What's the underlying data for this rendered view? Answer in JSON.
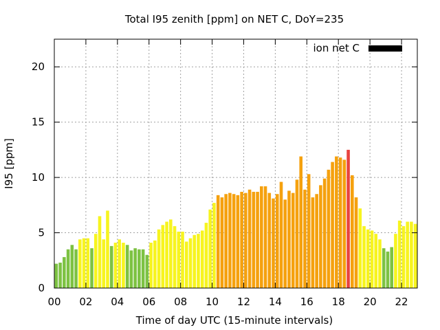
{
  "chart_data": {
    "type": "bar",
    "title": "Total I95 zenith [ppm] on NET C, DoY=235",
    "xlabel": "Time of day UTC (15-minute intervals)",
    "ylabel": "I95 [ppm]",
    "xlim": [
      0,
      23
    ],
    "ylim": [
      0,
      22.5
    ],
    "grid": true,
    "legend": {
      "position": "top-right",
      "label": "ion net C",
      "color": "#000000"
    },
    "x_ticks": [
      {
        "value": 0,
        "label": "00"
      },
      {
        "value": 2,
        "label": "02"
      },
      {
        "value": 4,
        "label": "04"
      },
      {
        "value": 6,
        "label": "06"
      },
      {
        "value": 8,
        "label": "08"
      },
      {
        "value": 10,
        "label": "10"
      },
      {
        "value": 12,
        "label": "12"
      },
      {
        "value": 14,
        "label": "14"
      },
      {
        "value": 16,
        "label": "16"
      },
      {
        "value": 18,
        "label": "18"
      },
      {
        "value": 20,
        "label": "20"
      },
      {
        "value": 22,
        "label": "22"
      }
    ],
    "y_ticks": [
      {
        "value": 0,
        "label": "0"
      },
      {
        "value": 5,
        "label": "5"
      },
      {
        "value": 10,
        "label": "10"
      },
      {
        "value": 15,
        "label": "15"
      },
      {
        "value": 20,
        "label": "20"
      }
    ],
    "bar_width": 0.2,
    "bars": [
      {
        "x": 0.125,
        "value": 2.2,
        "color": "#7dc242"
      },
      {
        "x": 0.375,
        "value": 2.3,
        "color": "#7dc242"
      },
      {
        "x": 0.625,
        "value": 2.8,
        "color": "#7dc242"
      },
      {
        "x": 0.875,
        "value": 3.5,
        "color": "#7dc242"
      },
      {
        "x": 1.125,
        "value": 3.9,
        "color": "#7dc242"
      },
      {
        "x": 1.375,
        "value": 3.5,
        "color": "#7dc242"
      },
      {
        "x": 1.625,
        "value": 4.4,
        "color": "#f7f41f"
      },
      {
        "x": 1.875,
        "value": 4.5,
        "color": "#f7f41f"
      },
      {
        "x": 2.125,
        "value": 4.5,
        "color": "#f7f41f"
      },
      {
        "x": 2.375,
        "value": 3.6,
        "color": "#7dc242"
      },
      {
        "x": 2.625,
        "value": 4.9,
        "color": "#f7f41f"
      },
      {
        "x": 2.875,
        "value": 6.5,
        "color": "#f7f41f"
      },
      {
        "x": 3.125,
        "value": 4.4,
        "color": "#f7f41f"
      },
      {
        "x": 3.375,
        "value": 7.0,
        "color": "#f7f41f"
      },
      {
        "x": 3.625,
        "value": 3.8,
        "color": "#7dc242"
      },
      {
        "x": 3.875,
        "value": 4.1,
        "color": "#f7f41f"
      },
      {
        "x": 4.125,
        "value": 4.4,
        "color": "#f7f41f"
      },
      {
        "x": 4.375,
        "value": 4.1,
        "color": "#f7f41f"
      },
      {
        "x": 4.625,
        "value": 3.9,
        "color": "#7dc242"
      },
      {
        "x": 4.875,
        "value": 3.4,
        "color": "#7dc242"
      },
      {
        "x": 5.125,
        "value": 3.6,
        "color": "#7dc242"
      },
      {
        "x": 5.375,
        "value": 3.5,
        "color": "#7dc242"
      },
      {
        "x": 5.625,
        "value": 3.5,
        "color": "#7dc242"
      },
      {
        "x": 5.875,
        "value": 3.0,
        "color": "#7dc242"
      },
      {
        "x": 6.125,
        "value": 4.1,
        "color": "#f7f41f"
      },
      {
        "x": 6.375,
        "value": 4.3,
        "color": "#f7f41f"
      },
      {
        "x": 6.625,
        "value": 5.3,
        "color": "#f7f41f"
      },
      {
        "x": 6.875,
        "value": 5.7,
        "color": "#f7f41f"
      },
      {
        "x": 7.125,
        "value": 6.0,
        "color": "#f7f41f"
      },
      {
        "x": 7.375,
        "value": 6.2,
        "color": "#f7f41f"
      },
      {
        "x": 7.625,
        "value": 5.6,
        "color": "#f7f41f"
      },
      {
        "x": 7.875,
        "value": 5.1,
        "color": "#f7f41f"
      },
      {
        "x": 8.125,
        "value": 5.1,
        "color": "#f7f41f"
      },
      {
        "x": 8.375,
        "value": 4.2,
        "color": "#f7f41f"
      },
      {
        "x": 8.625,
        "value": 4.5,
        "color": "#f7f41f"
      },
      {
        "x": 8.875,
        "value": 4.8,
        "color": "#f7f41f"
      },
      {
        "x": 9.125,
        "value": 4.9,
        "color": "#f7f41f"
      },
      {
        "x": 9.375,
        "value": 5.2,
        "color": "#f7f41f"
      },
      {
        "x": 9.625,
        "value": 5.9,
        "color": "#f7f41f"
      },
      {
        "x": 9.875,
        "value": 7.1,
        "color": "#f7f41f"
      },
      {
        "x": 10.125,
        "value": 7.7,
        "color": "#f7f41f"
      },
      {
        "x": 10.375,
        "value": 8.4,
        "color": "#f5a10e"
      },
      {
        "x": 10.625,
        "value": 8.2,
        "color": "#f5a10e"
      },
      {
        "x": 10.875,
        "value": 8.5,
        "color": "#f5a10e"
      },
      {
        "x": 11.125,
        "value": 8.6,
        "color": "#f5a10e"
      },
      {
        "x": 11.375,
        "value": 8.5,
        "color": "#f5a10e"
      },
      {
        "x": 11.625,
        "value": 8.4,
        "color": "#f5a10e"
      },
      {
        "x": 11.875,
        "value": 8.7,
        "color": "#f5a10e"
      },
      {
        "x": 12.125,
        "value": 8.6,
        "color": "#f5a10e"
      },
      {
        "x": 12.375,
        "value": 8.9,
        "color": "#f5a10e"
      },
      {
        "x": 12.625,
        "value": 8.7,
        "color": "#f5a10e"
      },
      {
        "x": 12.875,
        "value": 8.7,
        "color": "#f5a10e"
      },
      {
        "x": 13.125,
        "value": 9.2,
        "color": "#f5a10e"
      },
      {
        "x": 13.375,
        "value": 9.2,
        "color": "#f5a10e"
      },
      {
        "x": 13.625,
        "value": 8.6,
        "color": "#f5a10e"
      },
      {
        "x": 13.875,
        "value": 8.1,
        "color": "#f5a10e"
      },
      {
        "x": 14.125,
        "value": 8.5,
        "color": "#f5a10e"
      },
      {
        "x": 14.375,
        "value": 9.6,
        "color": "#f5a10e"
      },
      {
        "x": 14.625,
        "value": 8.0,
        "color": "#f5a10e"
      },
      {
        "x": 14.875,
        "value": 8.8,
        "color": "#f5a10e"
      },
      {
        "x": 15.125,
        "value": 8.6,
        "color": "#f5a10e"
      },
      {
        "x": 15.375,
        "value": 9.8,
        "color": "#f5a10e"
      },
      {
        "x": 15.625,
        "value": 11.9,
        "color": "#f5a10e"
      },
      {
        "x": 15.875,
        "value": 8.9,
        "color": "#f5a10e"
      },
      {
        "x": 16.125,
        "value": 10.3,
        "color": "#f5a10e"
      },
      {
        "x": 16.375,
        "value": 8.2,
        "color": "#f5a10e"
      },
      {
        "x": 16.625,
        "value": 8.5,
        "color": "#f5a10e"
      },
      {
        "x": 16.875,
        "value": 9.3,
        "color": "#f5a10e"
      },
      {
        "x": 17.125,
        "value": 9.9,
        "color": "#f5a10e"
      },
      {
        "x": 17.375,
        "value": 10.7,
        "color": "#f5a10e"
      },
      {
        "x": 17.625,
        "value": 11.4,
        "color": "#f5a10e"
      },
      {
        "x": 17.875,
        "value": 11.9,
        "color": "#f5a10e"
      },
      {
        "x": 18.125,
        "value": 11.8,
        "color": "#f5a10e"
      },
      {
        "x": 18.375,
        "value": 11.6,
        "color": "#f5a10e"
      },
      {
        "x": 18.625,
        "value": 12.5,
        "color": "#e8433f"
      },
      {
        "x": 18.875,
        "value": 10.2,
        "color": "#f5a10e"
      },
      {
        "x": 19.125,
        "value": 8.2,
        "color": "#f5a10e"
      },
      {
        "x": 19.375,
        "value": 7.2,
        "color": "#f7f41f"
      },
      {
        "x": 19.625,
        "value": 5.6,
        "color": "#f7f41f"
      },
      {
        "x": 19.875,
        "value": 5.3,
        "color": "#f7f41f"
      },
      {
        "x": 20.125,
        "value": 5.2,
        "color": "#f7f41f"
      },
      {
        "x": 20.375,
        "value": 4.9,
        "color": "#f7f41f"
      },
      {
        "x": 20.625,
        "value": 4.4,
        "color": "#f7f41f"
      },
      {
        "x": 20.875,
        "value": 3.6,
        "color": "#7dc242"
      },
      {
        "x": 21.125,
        "value": 3.3,
        "color": "#7dc242"
      },
      {
        "x": 21.375,
        "value": 3.7,
        "color": "#7dc242"
      },
      {
        "x": 21.625,
        "value": 4.9,
        "color": "#f7f41f"
      },
      {
        "x": 21.875,
        "value": 6.1,
        "color": "#f7f41f"
      },
      {
        "x": 22.125,
        "value": 5.6,
        "color": "#f7f41f"
      },
      {
        "x": 22.375,
        "value": 6.0,
        "color": "#f7f41f"
      },
      {
        "x": 22.625,
        "value": 6.0,
        "color": "#f7f41f"
      },
      {
        "x": 22.875,
        "value": 5.8,
        "color": "#f7f41f"
      }
    ]
  }
}
